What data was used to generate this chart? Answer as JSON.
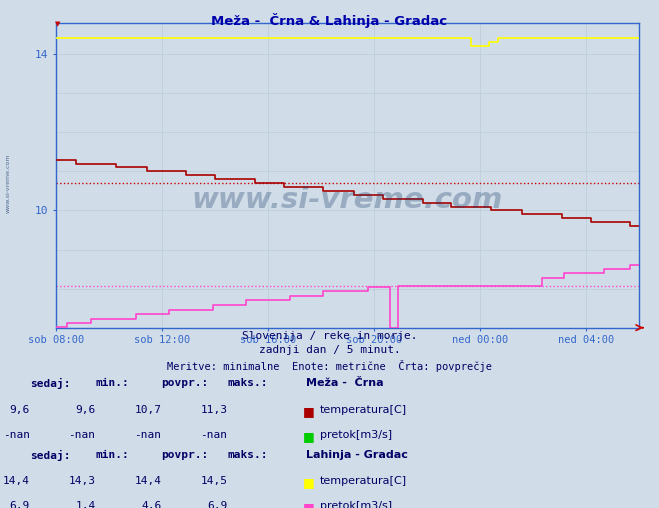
{
  "title": "Meža -  Črna & Lahinja - Gradac",
  "bg_color": "#d0dde8",
  "plot_bg_color": "#d0dde8",
  "grid_color": "#b8ccd8",
  "x_tick_labels": [
    "sob 08:00",
    "sob 12:00",
    "sob 16:00",
    "sob 20:00",
    "ned 00:00",
    "ned 04:00"
  ],
  "x_tick_positions": [
    0,
    48,
    96,
    144,
    192,
    240
  ],
  "total_points": 265,
  "y_min": 7.0,
  "y_max": 14.8,
  "y_ticks": [
    10,
    14
  ],
  "mezha_temp_avg": 10.7,
  "lahinja_temp_val": 14.4,
  "lahinja_pretok_avg_scaled": 7.6,
  "mezha_temp_color": "#aa0000",
  "lahinja_temp_color": "#ffff00",
  "lahinja_pretok_color": "#ff44cc",
  "mezha_temp_avg_color": "#cc0000",
  "lahinja_pretok_avg_color": "#ff44cc",
  "axis_color": "#3366cc",
  "title_color": "#0000aa",
  "label_color": "#000066",
  "watermark_color": "#1a3a6a",
  "subtitle1": "Slovenija / reke in morje.",
  "subtitle2": "zadnji dan / 5 minut.",
  "subtitle3": "Meritve: minimalne  Enote: metrične  Črta: povprečje",
  "table_header": [
    "sedaj:",
    "min.:",
    "povpr.:",
    "maks.:"
  ],
  "station1_name": "Meža -  Črna",
  "station1_row1_label": "temperatura[C]",
  "station1_row1_vals": [
    "9,6",
    "9,6",
    "10,7",
    "11,3"
  ],
  "station1_row2_label": "pretok[m3/s]",
  "station1_row2_vals": [
    "-nan",
    "-nan",
    "-nan",
    "-nan"
  ],
  "station2_name": "Lahinja - Gradac",
  "station2_row1_label": "temperatura[C]",
  "station2_row1_vals": [
    "14,4",
    "14,3",
    "14,4",
    "14,5"
  ],
  "station2_row2_label": "pretok[m3/s]",
  "station2_row2_vals": [
    "6,9",
    "1,4",
    "4,6",
    "6,9"
  ],
  "mezha_pretok_color": "#00cc00",
  "figsize": [
    6.59,
    5.08
  ],
  "dpi": 100
}
